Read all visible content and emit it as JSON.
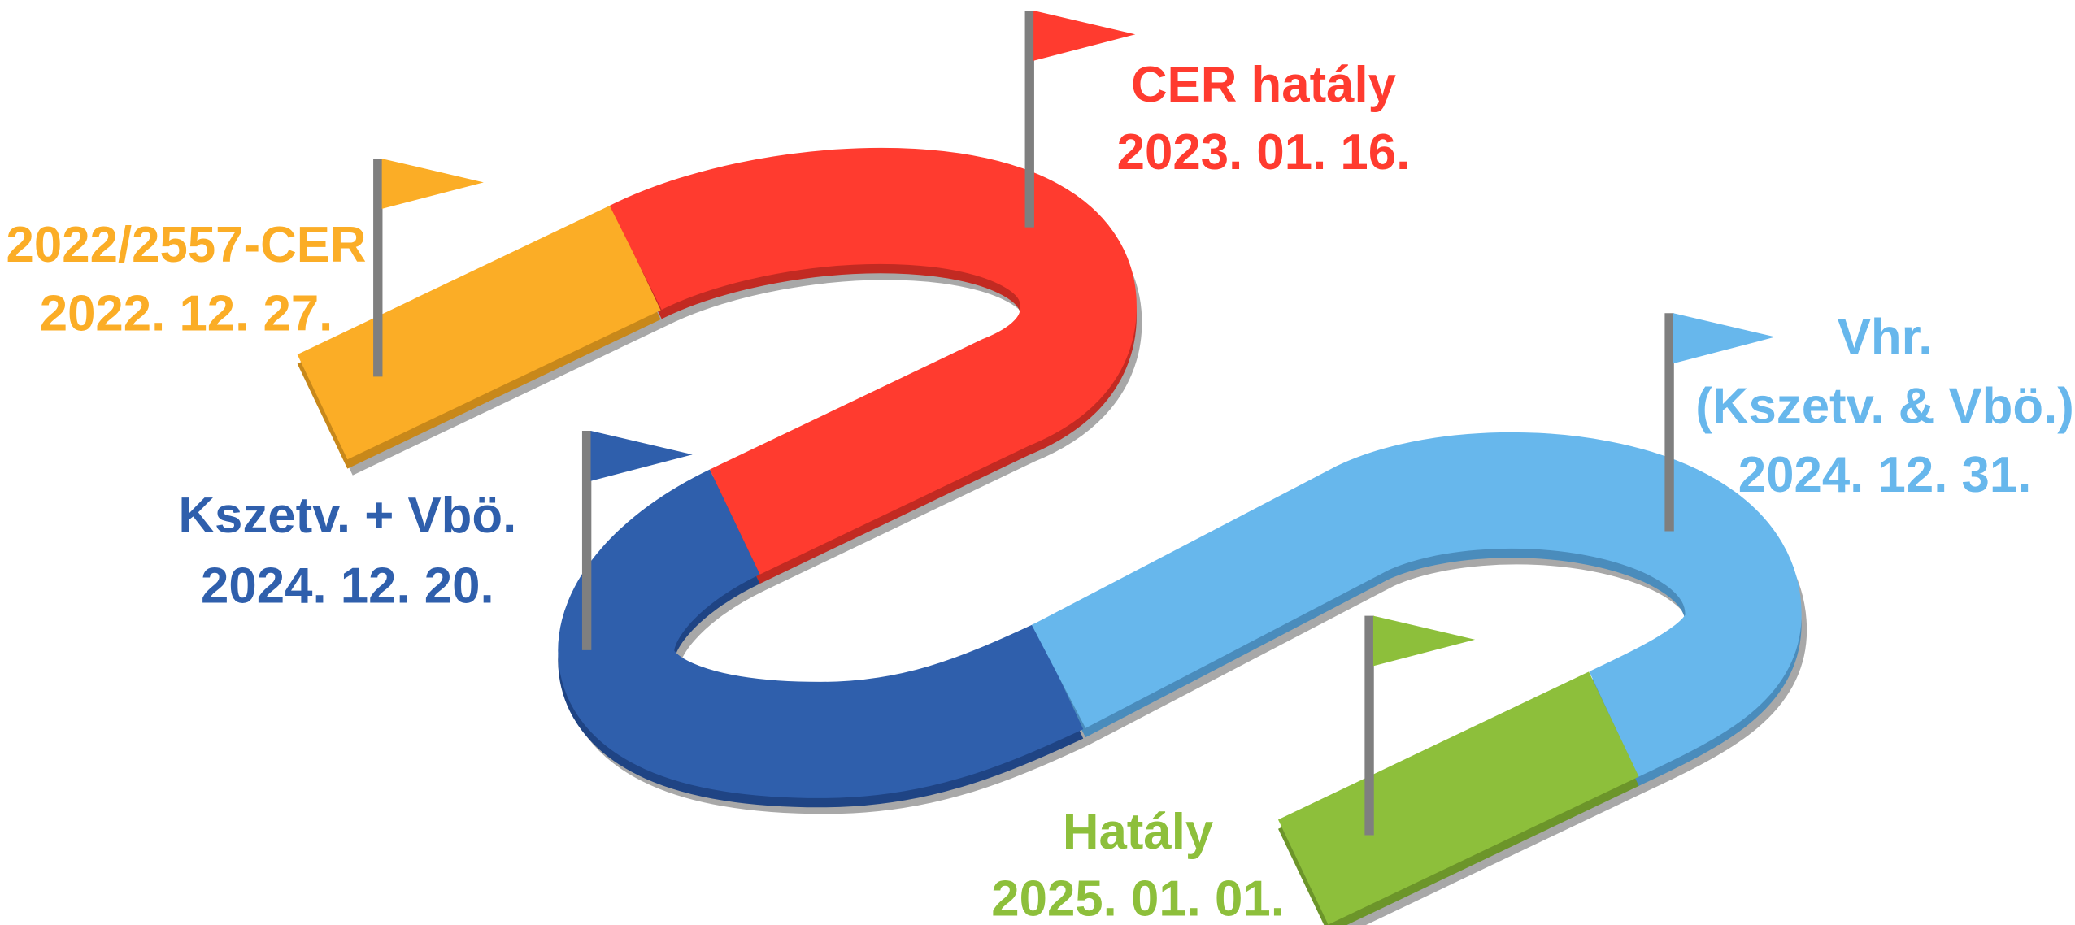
{
  "milestones": [
    {
      "lines": [
        "2022/2557-CER",
        "2022. 12. 27."
      ],
      "color": "#fbad26"
    },
    {
      "lines": [
        "CER hatály",
        "2023. 01. 16."
      ],
      "color": "#ff3b2f"
    },
    {
      "lines": [
        "Kszetv. + Vbö.",
        "2024. 12. 20."
      ],
      "color": "#2f5fac"
    },
    {
      "lines": [
        "Vhr.",
        "(Kszetv. & Vbö.)",
        "2024. 12. 31."
      ],
      "color": "#67b7ec"
    },
    {
      "lines": [
        "Hatály",
        "2025. 01. 01."
      ],
      "color": "#8dbf3b"
    }
  ]
}
